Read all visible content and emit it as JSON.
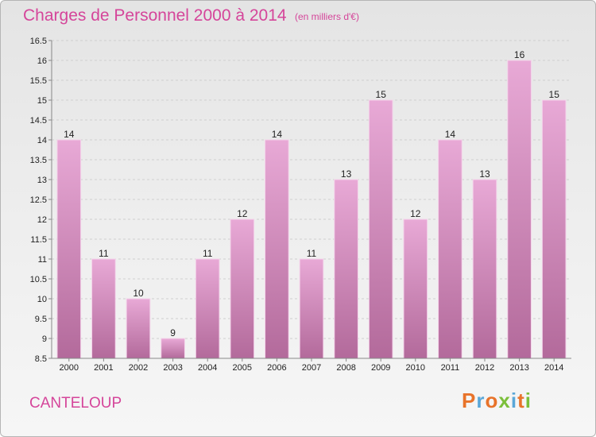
{
  "header": {
    "title": "Charges de Personnel 2000 à 2014",
    "subtitle": "(en milliers d'€)"
  },
  "footer": {
    "commune": "CANTELOUP",
    "logo_text": "Proxiti"
  },
  "colors": {
    "accent": "#d5459a",
    "bar_top": "#e8a9d6",
    "bar_bottom": "#b36a9b",
    "logo_letters": [
      "#e8732a",
      "#5aa7d8",
      "#e8732a",
      "#7bbf3a",
      "#5aa7d8",
      "#e8732a",
      "#7bbf3a"
    ]
  },
  "chart_data": {
    "type": "bar",
    "categories": [
      "2000",
      "2001",
      "2002",
      "2003",
      "2004",
      "2005",
      "2006",
      "2007",
      "2008",
      "2009",
      "2010",
      "2011",
      "2012",
      "2013",
      "2014"
    ],
    "values": [
      14,
      11,
      10,
      9,
      11,
      12,
      14,
      11,
      13,
      15,
      12,
      14,
      13,
      16,
      15
    ],
    "data_labels": [
      "14",
      "11",
      "10",
      "9",
      "11",
      "12",
      "14",
      "11",
      "13",
      "15",
      "12",
      "14",
      "13",
      "16",
      "15"
    ],
    "title": "Charges de Personnel 2000 à 2014",
    "xlabel": "",
    "ylabel": "",
    "ylim": [
      8.5,
      16.5
    ],
    "yticks": [
      "8.5",
      "9",
      "9.5",
      "10",
      "10.5",
      "11",
      "11.5",
      "12",
      "12.5",
      "13",
      "13.5",
      "14",
      "14.5",
      "15",
      "15.5",
      "16",
      "16.5"
    ],
    "grid": true
  }
}
